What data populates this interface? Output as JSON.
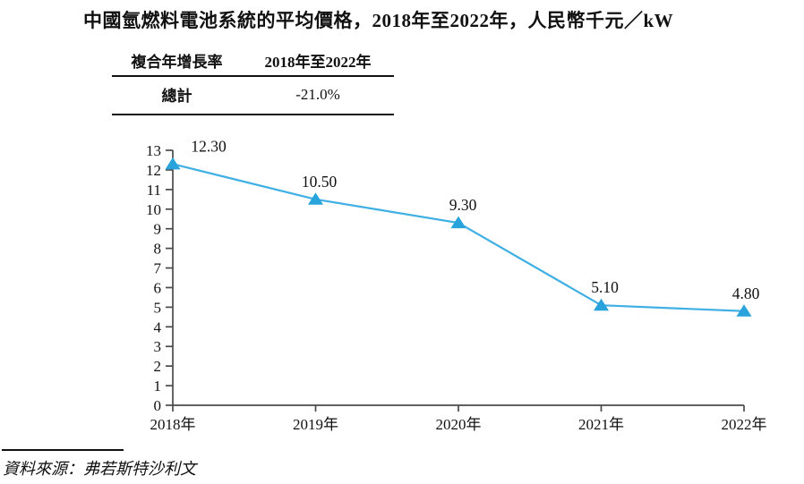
{
  "title": "中國氫燃料電池系統的平均價格，2018年至2022年，人民幣千元／kW",
  "cagr_table": {
    "header_metric": "複合年增長率",
    "header_period": "2018年至2022年",
    "row_label": "總計",
    "row_value": "-21.0%"
  },
  "chart_data": {
    "type": "line",
    "title": "中國氫燃料電池系統的平均價格，2018年至2022年，人民幣千元／kW",
    "categories": [
      "2018年",
      "2019年",
      "2020年",
      "2021年",
      "2022年"
    ],
    "values": [
      12.3,
      10.5,
      9.3,
      5.1,
      4.8
    ],
    "data_labels": [
      "12.30",
      "10.50",
      "9.30",
      "5.10",
      "4.80"
    ],
    "ylabel": "人民幣千元／kW",
    "xlabel": "",
    "ylim": [
      0,
      13
    ],
    "y_ticks": [
      0,
      1,
      2,
      3,
      4,
      5,
      6,
      7,
      8,
      9,
      10,
      11,
      12,
      13
    ],
    "grid": false,
    "legend": "none",
    "marker": "triangle-up",
    "line_color": "#3fafe4",
    "marker_color": "#29a3dc",
    "axis_color": "#4a4a4a",
    "label_dx": [
      40,
      4,
      5,
      4,
      2
    ]
  },
  "source": "資料來源：弗若斯特沙利文"
}
